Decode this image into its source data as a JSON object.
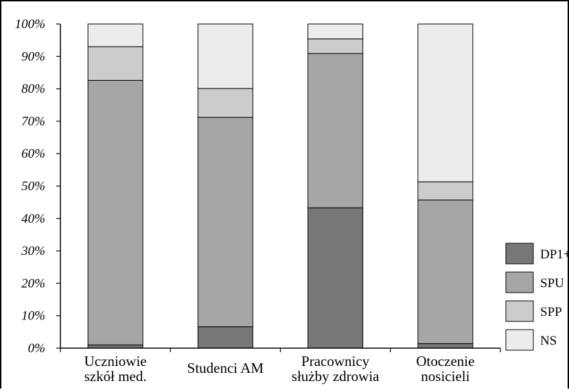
{
  "chart_data": {
    "type": "bar",
    "stacked": true,
    "title": "",
    "xlabel": "",
    "ylabel": "",
    "ylim": [
      0,
      100
    ],
    "y_ticks": [
      "0%",
      "10%",
      "20%",
      "30%",
      "40%",
      "50%",
      "60%",
      "70%",
      "80%",
      "90%",
      "100%"
    ],
    "categories": [
      [
        "Uczniowie",
        "szkół med."
      ],
      [
        "Studenci AM"
      ],
      [
        "Pracownicy",
        "służby zdrowia"
      ],
      [
        "Otoczenie",
        "nosicieli"
      ]
    ],
    "series": [
      {
        "name": "DP1+",
        "color": "#777777",
        "values": [
          1,
          6.6,
          43.3,
          1.4
        ]
      },
      {
        "name": "SPU",
        "color": "#a6a6a6",
        "values": [
          81.6,
          64.6,
          47.6,
          44.3
        ]
      },
      {
        "name": "SPP",
        "color": "#cccccc",
        "values": [
          10.4,
          8.9,
          4.5,
          5.6
        ]
      },
      {
        "name": "NS",
        "color": "#ececec",
        "values": [
          7,
          19.9,
          4.6,
          48.7
        ]
      }
    ],
    "legend": {
      "position": "right",
      "order": [
        "DP1+",
        "SPU",
        "SPP",
        "NS"
      ]
    },
    "grid": false
  }
}
